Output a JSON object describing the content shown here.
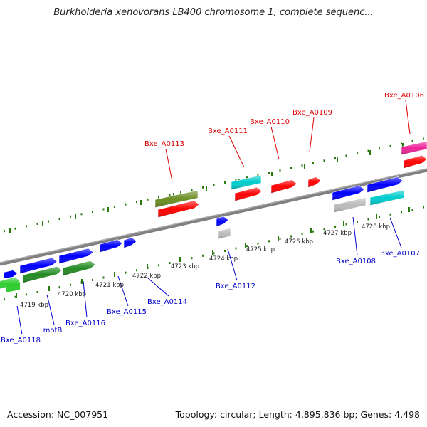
{
  "title": "Burkholderia xenovorans LB400 chromosome 1, complete sequenc...",
  "footer": {
    "accession": "Accession: NC_007951",
    "summary": "Topology: circular; Length: 4,895,836 bp; Genes: 4,498"
  },
  "colors": {
    "top_label": "#dd0000",
    "bottom_label": "#0000cc",
    "dots": "#2a7a10",
    "backbone": "#808080"
  },
  "genes": [
    {
      "name": "Bxe_A0106",
      "strand": "top",
      "color": "#ee2299"
    },
    {
      "name": "Bxe_A0107",
      "strand": "bottom",
      "color": "#00cccc"
    },
    {
      "name": "Bxe_A0108",
      "strand": "bottom",
      "color": "#bbbbbb"
    },
    {
      "name": "Bxe_A0109",
      "strand": "top",
      "color": "#ff0000"
    },
    {
      "name": "Bxe_A0110",
      "strand": "top",
      "color": "#ff0000"
    },
    {
      "name": "Bxe_A0111",
      "strand": "top",
      "color": "#00cccc"
    },
    {
      "name": "Bxe_A0112",
      "strand": "bottom",
      "color": "#bbbbbb"
    },
    {
      "name": "Bxe_A0113",
      "strand": "top",
      "color": "#6b8e23"
    },
    {
      "name": "Bxe_A0114",
      "strand": "bottom",
      "color": "#0000ff"
    },
    {
      "name": "Bxe_A0115",
      "strand": "bottom",
      "color": "#0000ff"
    },
    {
      "name": "Bxe_A0116",
      "strand": "bottom",
      "color": "#228b22"
    },
    {
      "name": "motB",
      "strand": "bottom",
      "color": "#228b22"
    },
    {
      "name": "Bxe_A0118",
      "strand": "bottom",
      "color": "#32cd32"
    }
  ],
  "ticks": [
    "4719 kbp",
    "4720 kbp",
    "4721 kbp",
    "4722 kbp",
    "4723 kbp",
    "4724 kbp",
    "4725 kbp",
    "4726 kbp",
    "4727 kbp",
    "4728 kbp"
  ]
}
